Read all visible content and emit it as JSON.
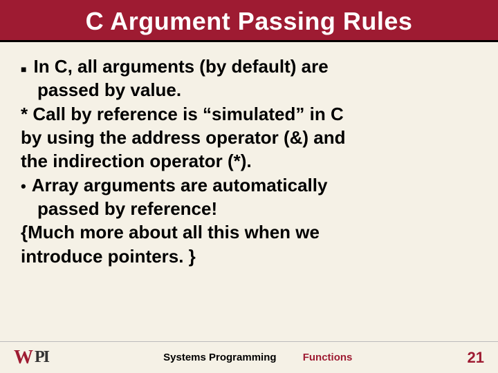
{
  "title": "C Argument Passing Rules",
  "body": {
    "line1": "In C, all arguments (by default) are",
    "line2": "passed by value.",
    "line3": "* Call by reference is “simulated” in C",
    "line4": "by using the address operator (&) and",
    "line5": "the indirection operator (*).",
    "line6": "Array arguments are automatically",
    "line7": "passed by reference!",
    "line8": "{Much more about all this when we",
    "line9": "introduce pointers. }"
  },
  "footer": {
    "logo_w": "W",
    "logo_pi": "PI",
    "center_left": "Systems Programming",
    "center_right": "Functions",
    "page": "21"
  },
  "colors": {
    "header_bg": "#9e1b32",
    "page_bg": "#f5f1e6",
    "accent": "#9e1b32"
  }
}
